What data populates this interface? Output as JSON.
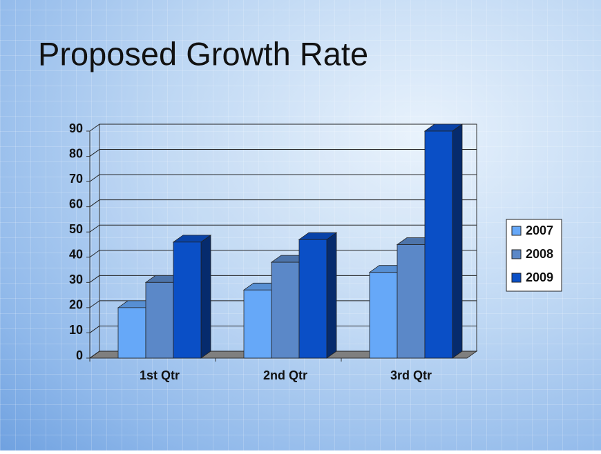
{
  "chart_data": {
    "type": "bar3d",
    "title": "Proposed Growth Rate",
    "categories": [
      "1st Qtr",
      "2nd Qtr",
      "3rd Qtr"
    ],
    "series": [
      {
        "name": "2007",
        "color": "#66a8f8",
        "values": [
          20,
          27,
          34
        ]
      },
      {
        "name": "2008",
        "color": "#5b88c8",
        "values": [
          30,
          38,
          45
        ]
      },
      {
        "name": "2009",
        "color": "#0a4fc6",
        "values": [
          46,
          47,
          90
        ]
      }
    ],
    "ylim": [
      0,
      90
    ],
    "yticks": [
      0,
      10,
      20,
      30,
      40,
      50,
      60,
      70,
      80,
      90
    ],
    "grid": true,
    "legend": "right"
  }
}
